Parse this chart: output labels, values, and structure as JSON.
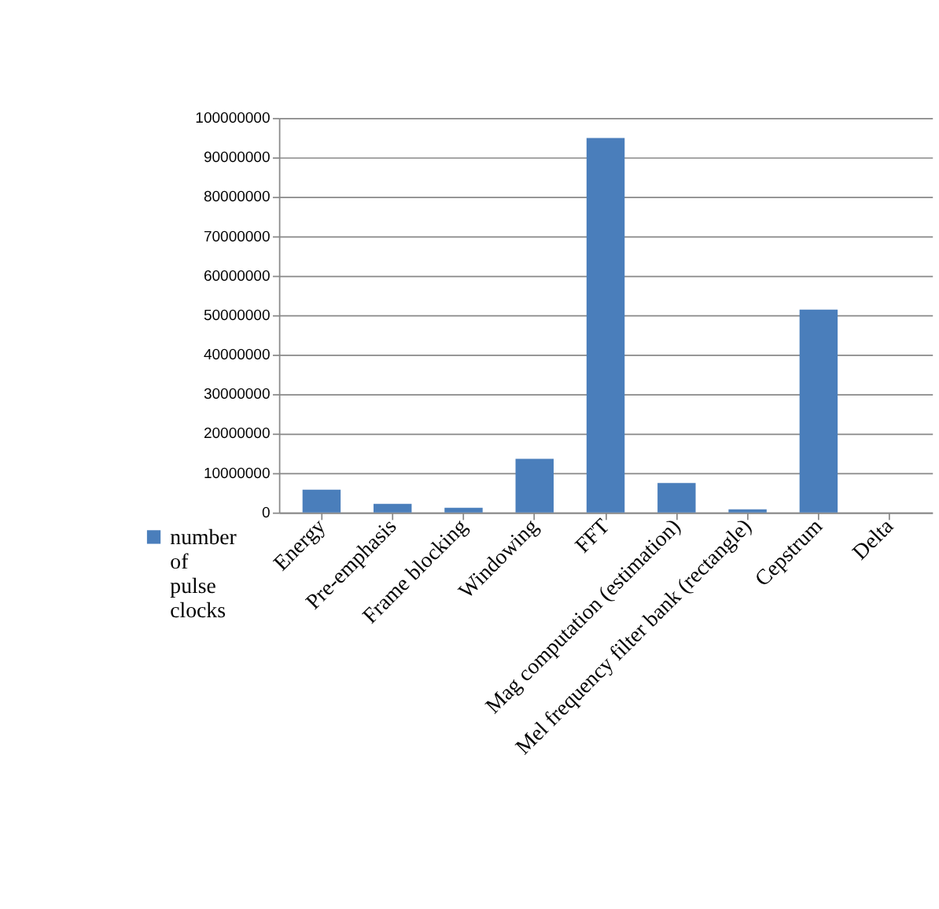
{
  "chart_data": {
    "type": "bar",
    "categories": [
      "Energy",
      "Pre-emphasis",
      "Frame blocking",
      "Windowing",
      "FFT",
      "Mag computation (estimation)",
      "Mel frequency filter bank (rectangle)",
      "Cepstrum",
      "Delta"
    ],
    "series": [
      {
        "name": "number of pulse clocks",
        "color": "#4a7ebb",
        "values": [
          5800000,
          2200000,
          1200000,
          13600000,
          94900000,
          7500000,
          800000,
          51400000,
          0
        ]
      }
    ],
    "ylim": [
      0,
      100000000
    ],
    "yticks": [
      0,
      10000000,
      20000000,
      30000000,
      40000000,
      50000000,
      60000000,
      70000000,
      80000000,
      90000000,
      100000000
    ],
    "grid": "y",
    "legend": "bottom left"
  }
}
